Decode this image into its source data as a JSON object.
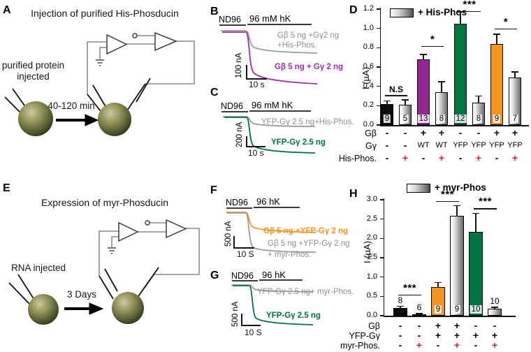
{
  "colors": {
    "purple_bar": "#92278F",
    "green_bar": "#007440",
    "orange_bar": "#F7941E",
    "magenta_trace": "#A62BA5",
    "gray_trace": "#8F8F8F",
    "red_plus": "#EC1C24"
  },
  "panels": {
    "A": {
      "letter": "A",
      "title": "Injection of purified His-Phosducin",
      "caption_line1": "purified protein",
      "caption_line2": "injected",
      "arrow_label": "40-120 min"
    },
    "B": {
      "letter": "B",
      "sol_left": "ND96",
      "sol_right": "96 mM hK",
      "trace1_label_line1": "Gβ 5 ng +Gγ2 ng",
      "trace1_label_line2": "+His-Phos.",
      "trace2_label": "Gβ 5 ng + Gγ 2 ng",
      "scale_v": "100 nA",
      "scale_h": "10 s"
    },
    "C": {
      "letter": "C",
      "sol_left": "ND96",
      "sol_right": "96 mM hK",
      "trace1_label": "YFP-Gγ 2.5 ng+His-Phos.",
      "trace2_label": "YFP-Gγ 2.5 ng",
      "scale_v": "200 nA",
      "scale_h": "10 s"
    },
    "E": {
      "letter": "E",
      "title": "Expression of myr-Phosducin",
      "caption_line1": "RNA injected",
      "arrow_label": "3 Days"
    },
    "F": {
      "letter": "F",
      "sol_left": "ND96",
      "sol_right": "96 hK",
      "trace1_label": "Gβ 5 ng +YFP-Gγ 2 ng",
      "trace2_label_line1": "Gβ 5 ng +YFP-Gγ 2 ng",
      "trace2_label_line2": "+ myr-Phos.",
      "scale_v": "500 nA",
      "scale_h": "10 S"
    },
    "G": {
      "letter": "G",
      "sol_left": "ND96",
      "sol_right": "96 hK",
      "trace1_label": "YFP-Gγ 2.5 ng+ myr-Phos.",
      "trace2_label": "YFP-Gγ 2.5 ng",
      "scale_v": "500 nA",
      "scale_h": "10 S"
    }
  },
  "chart_data": [
    {
      "id": "D",
      "type": "bar",
      "ylabel": "I (µA)",
      "ylim": [
        0,
        1.2
      ],
      "yticks": [
        "0.0",
        "0.2",
        "0.4",
        "0.6",
        "0.8",
        "1.0",
        "1.2"
      ],
      "legend": {
        "label": "+ His-Phos",
        "style": "white-to-black-gradient"
      },
      "bars": [
        {
          "value": 0.22,
          "err": 0.03,
          "n": "9",
          "fill": "black",
          "npos": "inside"
        },
        {
          "value": 0.21,
          "err": 0.05,
          "n": "5",
          "fill": "gradient",
          "npos": "inside"
        },
        {
          "value": 0.68,
          "err": 0.05,
          "n": "13",
          "fill": "purple",
          "npos": "inside"
        },
        {
          "value": 0.34,
          "err": 0.11,
          "n": "8",
          "fill": "gradient",
          "npos": "inside"
        },
        {
          "value": 1.05,
          "err": 0.12,
          "n": "12",
          "fill": "green",
          "npos": "inside"
        },
        {
          "value": 0.23,
          "err": 0.07,
          "n": "8",
          "fill": "gradient",
          "npos": "inside"
        },
        {
          "value": 0.84,
          "err": 0.1,
          "n": "9",
          "fill": "orange",
          "npos": "inside"
        },
        {
          "value": 0.49,
          "err": 0.06,
          "n": "7",
          "fill": "gradient",
          "npos": "inside"
        }
      ],
      "significance": [
        {
          "from": 0,
          "to": 1,
          "label": "N.S",
          "y": 0.31
        },
        {
          "from": 2,
          "to": 3,
          "label": "*",
          "y": 0.82
        },
        {
          "from": 4,
          "to": 5,
          "label": "***",
          "y": 1.18
        },
        {
          "from": 6,
          "to": 7,
          "label": "*",
          "y": 1.0
        }
      ],
      "condition_rows": [
        {
          "label": "Gβ",
          "values": [
            "-",
            "-",
            "+",
            "+",
            "-",
            "-",
            "+",
            "+"
          ],
          "plus_red": false
        },
        {
          "label": "Gγ",
          "values": [
            "-",
            "-",
            "WT",
            "WT",
            "YFP",
            "YFP",
            "YFP",
            "YFP"
          ],
          "plus_red": false
        },
        {
          "label": "His-Phos.",
          "values": [
            "-",
            "+",
            "-",
            "+",
            "-",
            "+",
            "-",
            "+"
          ],
          "plus_red": true
        }
      ]
    },
    {
      "id": "H",
      "type": "bar",
      "ylabel": "I (µA)",
      "ylim": [
        0,
        3.0
      ],
      "yticks": [
        "0.0",
        "0.5",
        "1.0",
        "1.5",
        "2.0",
        "2.5",
        "3.0"
      ],
      "legend": {
        "label": "+ myr-Phos",
        "style": "white-to-black-gradient"
      },
      "bars": [
        {
          "value": 0.2,
          "err": 0.04,
          "n": "8",
          "fill": "black",
          "npos": "above"
        },
        {
          "value": 0.04,
          "err": 0.01,
          "n": "6",
          "fill": "gradient",
          "npos": "above"
        },
        {
          "value": 0.74,
          "err": 0.12,
          "n": "9",
          "fill": "orange",
          "npos": "inside"
        },
        {
          "value": 2.58,
          "err": 0.27,
          "n": "9",
          "fill": "gradient",
          "npos": "inside"
        },
        {
          "value": 2.16,
          "err": 0.49,
          "n": "10",
          "fill": "green",
          "npos": "inside"
        },
        {
          "value": 0.18,
          "err": 0.04,
          "n": "10",
          "fill": "gradient",
          "npos": "above"
        }
      ],
      "significance": [
        {
          "from": 0,
          "to": 1,
          "label": "***",
          "y": 0.55
        },
        {
          "from": 2,
          "to": 3,
          "label": "***",
          "y": 2.97
        },
        {
          "from": 4,
          "to": 5,
          "label": "***",
          "y": 2.78
        }
      ],
      "condition_rows": [
        {
          "label": "Gβ",
          "values": [
            "-",
            "-",
            "+",
            "+",
            "-",
            "-"
          ],
          "plus_red": false
        },
        {
          "label": "YFP-Gγ",
          "values": [
            "-",
            "-",
            "+",
            "+",
            "+",
            "+"
          ],
          "plus_red": false
        },
        {
          "label": "myr-Phos.",
          "values": [
            "-",
            "+",
            "-",
            "+",
            "-",
            "+"
          ],
          "plus_red": true
        }
      ]
    }
  ]
}
